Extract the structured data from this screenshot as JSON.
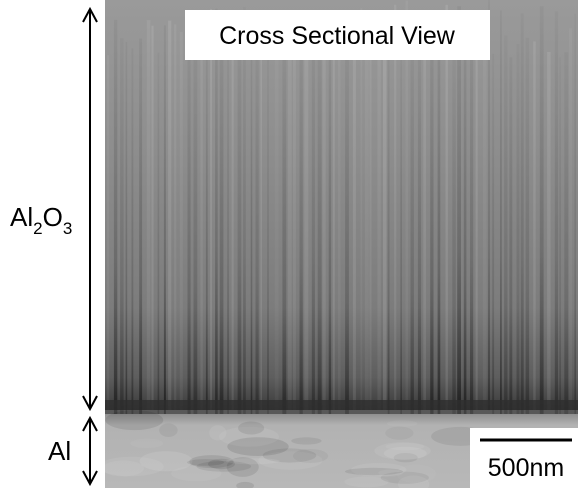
{
  "title": "Cross Sectional View",
  "layers": {
    "oxide": {
      "parts": [
        "Al",
        "2",
        "O",
        "3"
      ]
    },
    "metal": {
      "label": "Al"
    }
  },
  "scale_bar": {
    "label": "500nm"
  }
}
